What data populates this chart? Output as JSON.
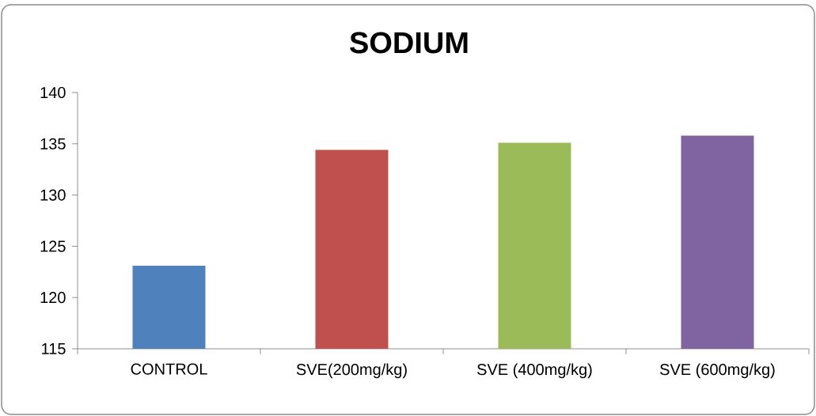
{
  "chart_data": {
    "type": "bar",
    "title": "SODIUM",
    "categories": [
      "CONTROL",
      "SVE(200mg/kg)",
      "SVE (400mg/kg)",
      "SVE (600mg/kg)"
    ],
    "values": [
      123.1,
      134.4,
      135.1,
      135.8
    ],
    "colors": [
      "#4f81bd",
      "#c0504d",
      "#9bbb59",
      "#8064a2"
    ],
    "ylim": [
      115,
      140
    ],
    "yticks": [
      115,
      120,
      125,
      130,
      135,
      140
    ]
  }
}
